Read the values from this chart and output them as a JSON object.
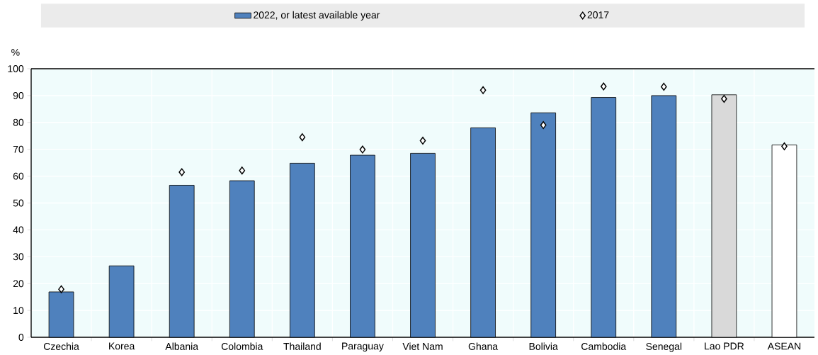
{
  "chart_data": {
    "type": "bar",
    "ylabel": "%",
    "categories": [
      "Czechia",
      "Korea",
      "Albania",
      "Colombia",
      "Thailand",
      "Paraguay",
      "Viet Nam",
      "Ghana",
      "Bolivia",
      "Cambodia",
      "Senegal",
      "Lao PDR",
      "ASEAN"
    ],
    "series": [
      {
        "name": "2022, or latest available year",
        "color": "#4f81bd",
        "colors": [
          "#4f81bd",
          "#4f81bd",
          "#4f81bd",
          "#4f81bd",
          "#4f81bd",
          "#4f81bd",
          "#4f81bd",
          "#4f81bd",
          "#4f81bd",
          "#4f81bd",
          "#4f81bd",
          "#d9d9d9",
          "#ffffff"
        ],
        "values": [
          16.9,
          26.6,
          56.6,
          58.3,
          64.8,
          67.8,
          68.5,
          78.0,
          83.6,
          89.3,
          90.0,
          90.3,
          71.6
        ]
      },
      {
        "name": "2017",
        "type": "scatter",
        "marker": "diamond",
        "color": "#000000",
        "values": [
          17.9,
          null,
          61.5,
          62.1,
          74.5,
          69.9,
          73.2,
          92.0,
          79.0,
          93.4,
          93.3,
          88.8,
          71.1
        ]
      }
    ],
    "ylim": [
      0,
      100
    ],
    "yticks": [
      0,
      10,
      20,
      30,
      40,
      50,
      60,
      70,
      80,
      90,
      100
    ],
    "grid": true,
    "legend": "top"
  }
}
